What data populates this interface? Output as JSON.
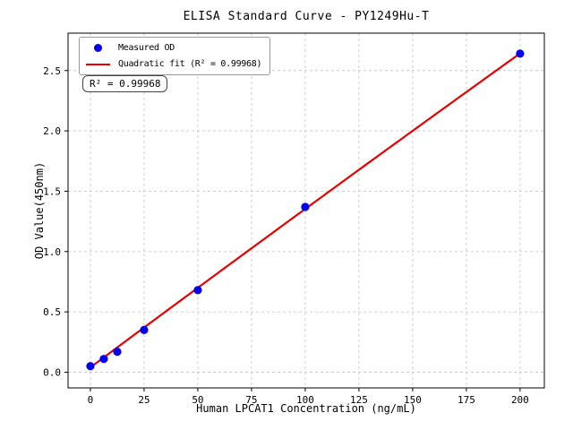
{
  "figure": {
    "title": "ELISA Standard Curve - PY1249Hu-T"
  },
  "chart_data": {
    "type": "scatter",
    "title": "ELISA Standard Curve - PY1249Hu-T",
    "xlabel": "Human LPCAT1 Concentration (ng/mL)",
    "ylabel": "OD Value(450nm)",
    "xlim": [
      -10.4,
      211.3
    ],
    "ylim": [
      -0.13,
      2.81
    ],
    "xticks": [
      0,
      25,
      50,
      75,
      100,
      125,
      150,
      175,
      200
    ],
    "yticks": [
      0.0,
      0.5,
      1.0,
      1.5,
      2.0,
      2.5
    ],
    "grid": true,
    "grid_style": "dashed",
    "legend_position": "upper left",
    "series": [
      {
        "name": "Measured OD",
        "type": "scatter",
        "color": "#0000ee",
        "x": [
          0,
          6.25,
          12.5,
          25,
          50,
          100,
          200
        ],
        "y": [
          0.05,
          0.11,
          0.17,
          0.35,
          0.68,
          1.37,
          2.64
        ]
      },
      {
        "name": "Quadratic fit (R² = 0.99968)",
        "type": "line",
        "color": "#e60000",
        "fit": {
          "a": 0.04,
          "b": 0.01325,
          "c": -1.2e-06,
          "x_start": 0,
          "x_end": 200
        }
      }
    ]
  },
  "legend": {
    "items": [
      {
        "label": "Measured OD",
        "marker": "dot",
        "color": "#0000ee"
      },
      {
        "label": "Quadratic fit (R² = 0.99968)",
        "marker": "line",
        "color": "#e60000"
      }
    ]
  },
  "annotation": {
    "r_squared_text": "R² = 0.99968"
  },
  "colors": {
    "marker": "#0000ee",
    "fit_line": "#e60000",
    "grid": "#c9c9c9",
    "axis": "#000000",
    "text": "#000000",
    "background": "#ffffff"
  }
}
